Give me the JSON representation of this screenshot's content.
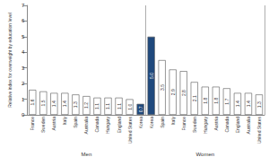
{
  "chart_data": {
    "type": "bar",
    "y_label": "Relative index for overweight by education level",
    "groups": [
      {
        "name": "Men",
        "categories": [
          "France",
          "Sweden",
          "Austria",
          "Italy",
          "Spain",
          "Australia",
          "Canada",
          "Hungary",
          "England",
          "United States",
          "Korea"
        ],
        "values": [
          1.6,
          1.5,
          1.4,
          1.4,
          1.3,
          1.2,
          1.1,
          1.1,
          1.1,
          1.0,
          0.7
        ],
        "value_labels": [
          "1.6",
          "1.5",
          "1.4",
          "1.4",
          "1.3",
          "1.2",
          "1.1",
          "1.1",
          "1.1",
          "1.0",
          "0.7"
        ],
        "colors": [
          "#ffffff",
          "#ffffff",
          "#ffffff",
          "#ffffff",
          "#ffffff",
          "#ffffff",
          "#ffffff",
          "#ffffff",
          "#ffffff",
          "#ffffff",
          "#1f497d"
        ]
      },
      {
        "name": "Women",
        "categories": [
          "Korea",
          "Spain",
          "Italy",
          "France",
          "Sweden",
          "Hungary",
          "Austria",
          "Canada",
          "England",
          "Australia",
          "United States"
        ],
        "values": [
          5.0,
          3.5,
          2.9,
          2.8,
          2.1,
          1.8,
          1.8,
          1.7,
          1.4,
          1.4,
          1.3
        ],
        "value_labels": [
          "5.0",
          "3.5",
          "2.9",
          "2.8",
          "2.1",
          "1.8",
          "1.8",
          "1.7",
          "1.4",
          "1.4",
          "1.3"
        ],
        "colors": [
          "#1f497d",
          "#ffffff",
          "#ffffff",
          "#ffffff",
          "#ffffff",
          "#ffffff",
          "#ffffff",
          "#ffffff",
          "#ffffff",
          "#ffffff",
          "#ffffff"
        ]
      }
    ],
    "ylim": [
      0,
      7
    ],
    "yticks": [
      0,
      1,
      2,
      3,
      4,
      5,
      6,
      7
    ],
    "data_labels": true,
    "grid": false
  }
}
